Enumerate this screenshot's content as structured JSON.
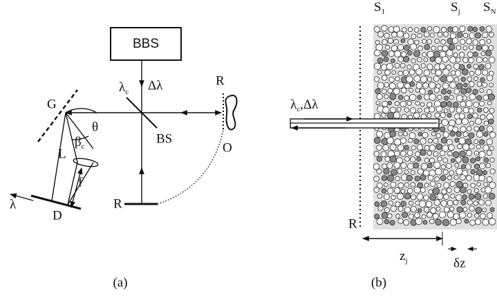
{
  "panel_a": {
    "label": "(a)",
    "source": "BBS",
    "input_wavelength": {
      "symbol": "λ",
      "sub": "c"
    },
    "bandwidth": "Δλ",
    "reference_mirror_top": "R",
    "object": "O",
    "beam_splitter": "BS",
    "grating": "G",
    "angle": "θ",
    "diffraction_angle": {
      "symbol": "β",
      "sub": "c"
    },
    "lens": "L",
    "focal_length": "f",
    "wavelength_axis": "λ",
    "detector": "D",
    "reference_mirror": "R"
  },
  "panel_b": {
    "label": "(b)",
    "layers": [
      {
        "symbol": "S",
        "sub": "1"
      },
      {
        "symbol": "S",
        "sub": "j"
      },
      {
        "symbol": "S",
        "sub": "N"
      }
    ],
    "beam": {
      "symbol": "λ",
      "sub": "c",
      "rest": ",Δλ"
    },
    "reference": "R",
    "depth": {
      "symbol": "z",
      "sub": "j"
    },
    "thickness": "δz"
  }
}
